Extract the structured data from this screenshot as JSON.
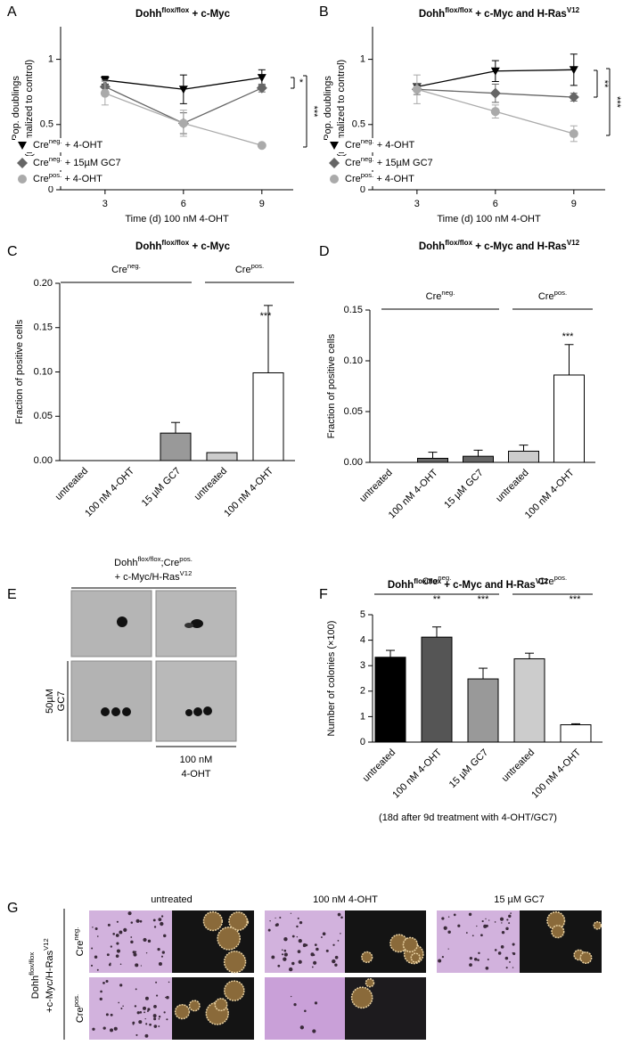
{
  "chart_data": [
    {
      "panel": "A",
      "type": "line",
      "title": [
        {
          "text": "Dohh"
        },
        {
          "text": "flox/flox",
          "sup": true
        },
        {
          "text": " + c-Myc"
        }
      ],
      "x": [
        3,
        6,
        9
      ],
      "xlim": [
        1.3,
        10.2
      ],
      "xticks": [
        3,
        6,
        9
      ],
      "ylim": [
        0,
        1.25
      ],
      "yticks": [
        0,
        0.5,
        1
      ],
      "xlabel": "Time (d) 100 nM 4-OHT",
      "ylabel": [
        "Pop. doublings",
        "(normalized to control)"
      ],
      "series": [
        {
          "name": [
            {
              "text": "Cre"
            },
            {
              "text": "neg.",
              "sup": true
            },
            {
              "text": " + 4-OHT"
            }
          ],
          "color": "#000000",
          "marker": "triangle",
          "values": [
            0.84,
            0.77,
            0.86
          ],
          "errors": [
            0.03,
            0.11,
            0.06
          ]
        },
        {
          "name": [
            {
              "text": "Cre"
            },
            {
              "text": "neg.",
              "sup": true
            },
            {
              "text": " + 15µM GC7"
            }
          ],
          "color": "#666666",
          "marker": "diamond",
          "values": [
            0.79,
            0.51,
            0.78
          ],
          "errors": [
            0.05,
            0.08,
            0.03
          ]
        },
        {
          "name": [
            {
              "text": "Cre"
            },
            {
              "text": "pos.",
              "sup": true
            },
            {
              "text": " + 4-OHT"
            }
          ],
          "color": "#aaaaaa",
          "marker": "circle",
          "values": [
            0.74,
            0.51,
            0.34
          ],
          "errors": [
            0.09,
            0.1,
            0.01
          ]
        }
      ],
      "annotations": [
        "*",
        "***"
      ]
    },
    {
      "panel": "B",
      "type": "line",
      "title": [
        {
          "text": "Dohh"
        },
        {
          "text": "flox/flox",
          "sup": true
        },
        {
          "text": " + c-Myc and H-Ras"
        },
        {
          "text": "V12",
          "sup": true
        }
      ],
      "x": [
        3,
        6,
        9
      ],
      "xlim": [
        1.3,
        10.2
      ],
      "xticks": [
        3,
        6,
        9
      ],
      "ylim": [
        0,
        1.25
      ],
      "yticks": [
        0,
        0.5,
        1
      ],
      "xlabel": "Time (d) 100 nM 4-OHT",
      "ylabel": [
        "Pop. doublings",
        "(normalized to control)"
      ],
      "series": [
        {
          "name": [
            {
              "text": "Cre"
            },
            {
              "text": "neg.",
              "sup": true
            },
            {
              "text": " + 4-OHT"
            }
          ],
          "color": "#000000",
          "marker": "triangle",
          "values": [
            0.79,
            0.91,
            0.92
          ],
          "errors": [
            0.02,
            0.08,
            0.12
          ]
        },
        {
          "name": [
            {
              "text": "Cre"
            },
            {
              "text": "neg.",
              "sup": true
            },
            {
              "text": " + 15µM GC7"
            }
          ],
          "color": "#666666",
          "marker": "diamond",
          "values": [
            0.77,
            0.74,
            0.71
          ],
          "errors": [
            0.04,
            0.07,
            0.03
          ]
        },
        {
          "name": [
            {
              "text": "Cre"
            },
            {
              "text": "pos.",
              "sup": true
            },
            {
              "text": " + 4-OHT"
            }
          ],
          "color": "#aaaaaa",
          "marker": "circle",
          "values": [
            0.77,
            0.6,
            0.43
          ],
          "errors": [
            0.11,
            0.05,
            0.06
          ]
        }
      ],
      "annotations": [
        "**",
        "***"
      ]
    },
    {
      "panel": "C",
      "type": "bar",
      "title": [
        {
          "text": "Dohh"
        },
        {
          "text": "flox/flox",
          "sup": true
        },
        {
          "text": " + c-Myc"
        }
      ],
      "categories": [
        "untreated",
        "100 nM 4-OHT",
        "15 µM GC7",
        "untreated",
        "100 nM 4-OHT"
      ],
      "values": [
        0,
        0,
        0.031,
        0.009,
        0.099
      ],
      "errors": [
        0,
        0,
        0.012,
        0,
        0.076
      ],
      "colors": [
        "#ffffff",
        "#ffffff",
        "#999999",
        "#cccccc",
        "#ffffff"
      ],
      "ylim": [
        0,
        0.2
      ],
      "yticks": [
        {
          "value": 0,
          "label": "0.00"
        },
        {
          "value": 0.05,
          "label": "0.05"
        },
        {
          "value": 0.1,
          "label": "0.10"
        },
        {
          "value": 0.15,
          "label": "0.15"
        },
        {
          "value": 0.2,
          "label": "0.20"
        }
      ],
      "ylabel": "Fraction of positive cells",
      "groups": [
        [
          {
            "text": "Cre"
          },
          {
            "text": "neg.",
            "sup": true
          }
        ],
        [
          {
            "text": "Cre"
          },
          {
            "text": "pos.",
            "sup": true
          }
        ]
      ],
      "annotations": [
        "***"
      ]
    },
    {
      "panel": "D",
      "type": "bar",
      "title": [
        {
          "text": "Dohh"
        },
        {
          "text": "flox/flox",
          "sup": true
        },
        {
          "text": " + c-Myc and H-Ras"
        },
        {
          "text": "V12",
          "sup": true
        }
      ],
      "categories": [
        "untreated",
        "100 nM 4-OHT",
        "15 µM GC7",
        "untreated",
        "100 nM 4-OHT"
      ],
      "values": [
        0,
        0.004,
        0.006,
        0.011,
        0.086
      ],
      "errors": [
        0,
        0.006,
        0.006,
        0.006,
        0.03
      ],
      "colors": [
        "#ffffff",
        "#666666",
        "#666666",
        "#cccccc",
        "#ffffff"
      ],
      "ylim": [
        0,
        0.15
      ],
      "yticks": [
        {
          "value": 0,
          "label": "0.00"
        },
        {
          "value": 0.05,
          "label": "0.05"
        },
        {
          "value": 0.1,
          "label": "0.10"
        },
        {
          "value": 0.15,
          "label": "0.15"
        }
      ],
      "ylabel": "Fraction of positive cells",
      "groups": [
        [
          {
            "text": "Cre"
          },
          {
            "text": "neg.",
            "sup": true
          }
        ],
        [
          {
            "text": "Cre"
          },
          {
            "text": "pos.",
            "sup": true
          }
        ]
      ],
      "annotations": [
        "***"
      ]
    },
    {
      "panel": "F",
      "type": "bar",
      "title": [
        {
          "text": "Dohh"
        },
        {
          "text": "flox/flox",
          "sup": true
        },
        {
          "text": " + c-Myc and H-Ras"
        },
        {
          "text": "V12",
          "sup": true
        }
      ],
      "categories": [
        "untreated",
        "100 nM 4-OHT",
        "15 µM GC7",
        "untreated",
        "100 nM 4-OHT"
      ],
      "values": [
        3.33,
        4.12,
        2.48,
        3.27,
        0.68
      ],
      "errors": [
        0.27,
        0.4,
        0.42,
        0.22,
        0.04
      ],
      "colors": [
        "#000000",
        "#555555",
        "#999999",
        "#cccccc",
        "#ffffff"
      ],
      "ylim": [
        0,
        5
      ],
      "yticks": [
        0,
        1,
        2,
        3,
        4,
        5
      ],
      "ylabel": "Number of colonies (×100)",
      "groups": [
        [
          {
            "text": "Cre"
          },
          {
            "text": "neg.",
            "sup": true
          }
        ],
        [
          {
            "text": "Cre"
          },
          {
            "text": "pos.",
            "sup": true
          }
        ]
      ],
      "annotations": [
        "**",
        "***",
        "***"
      ],
      "footnote": "(18d after 9d treatment with 4-OHT/GC7)"
    }
  ],
  "panel_e": {
    "panel": "E",
    "header": [
      [
        {
          "text": "Dohh"
        },
        {
          "text": "flox/flox",
          "sup": true
        },
        {
          "text": ";Cre"
        },
        {
          "text": "pos.",
          "sup": true
        }
      ],
      [
        {
          "text": "+ c-Myc/H-Ras"
        },
        {
          "text": "V12",
          "sup": true
        }
      ]
    ],
    "row_label": [
      "50µM",
      "GC7"
    ],
    "col_label": [
      "100 nM",
      "4-OHT"
    ]
  },
  "panel_g": {
    "panel": "G",
    "columns": [
      "untreated",
      "100 nM 4-OHT",
      "15 µM GC7"
    ],
    "rows": [
      [
        {
          "text": "Cre"
        },
        {
          "text": "neg.",
          "sup": true
        }
      ],
      [
        {
          "text": "Cre"
        },
        {
          "text": "pos.",
          "sup": true
        }
      ]
    ],
    "side_label": [
      [
        {
          "text": "Dohh"
        },
        {
          "text": "flox/flox",
          "sup": true
        }
      ],
      [
        {
          "text": "+c-Myc/H-Ras"
        },
        {
          "text": "V12",
          "sup": true
        }
      ]
    ]
  }
}
